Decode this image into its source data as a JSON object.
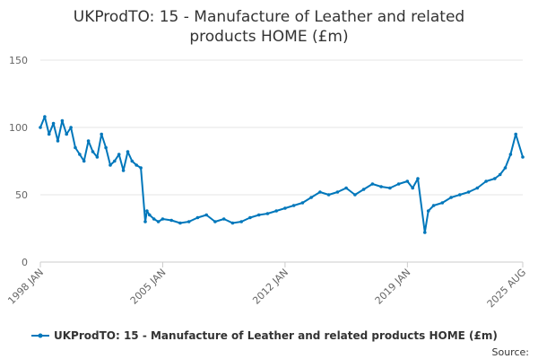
{
  "chart_data": {
    "type": "line",
    "title_line1": "UKProdTO: 15 - Manufacture of Leather and related",
    "title_line2": "products HOME (£m)",
    "xlabel": "",
    "ylabel": "",
    "ylim": [
      0,
      150
    ],
    "y_ticks": [
      "0",
      "50",
      "100",
      "150"
    ],
    "x_ticks": [
      "1998 JAN",
      "2005 JAN",
      "2012 JAN",
      "2019 JAN",
      "2025 AUG"
    ],
    "grid": true,
    "legend_position": "bottom",
    "line_color": "#0077bb",
    "series": [
      {
        "name": "UKProdTO: 15 - Manufacture of Leather and related products HOME (£m)",
        "x": [
          1998.0,
          1998.25,
          1998.5,
          1998.75,
          1999.0,
          1999.25,
          1999.5,
          1999.75,
          2000.0,
          2000.25,
          2000.5,
          2000.75,
          2001.0,
          2001.25,
          2001.5,
          2001.75,
          2002.0,
          2002.25,
          2002.5,
          2002.75,
          2003.0,
          2003.25,
          2003.5,
          2003.75,
          2004.0,
          2004.1,
          2004.25,
          2004.5,
          2004.75,
          2005.0,
          2005.5,
          2006.0,
          2006.5,
          2007.0,
          2007.5,
          2008.0,
          2008.5,
          2009.0,
          2009.5,
          2010.0,
          2010.5,
          2011.0,
          2011.5,
          2012.0,
          2012.5,
          2013.0,
          2013.5,
          2014.0,
          2014.5,
          2015.0,
          2015.5,
          2016.0,
          2016.5,
          2017.0,
          2017.5,
          2018.0,
          2018.5,
          2019.0,
          2019.3,
          2019.6,
          2020.0,
          2020.2,
          2020.5,
          2021.0,
          2021.5,
          2022.0,
          2022.5,
          2023.0,
          2023.5,
          2024.0,
          2024.3,
          2024.6,
          2024.9,
          2025.2,
          2025.6
        ],
        "values": [
          100,
          108,
          95,
          103,
          90,
          105,
          95,
          100,
          85,
          80,
          75,
          90,
          82,
          78,
          95,
          85,
          72,
          75,
          80,
          68,
          82,
          75,
          72,
          70,
          30,
          38,
          35,
          32,
          30,
          32,
          31,
          29,
          30,
          33,
          35,
          30,
          32,
          29,
          30,
          33,
          35,
          36,
          38,
          40,
          42,
          44,
          48,
          52,
          50,
          52,
          55,
          50,
          54,
          58,
          56,
          55,
          58,
          60,
          55,
          62,
          22,
          38,
          42,
          44,
          48,
          50,
          52,
          55,
          60,
          62,
          65,
          70,
          80,
          95,
          78
        ]
      }
    ],
    "source_label": "Source:"
  }
}
